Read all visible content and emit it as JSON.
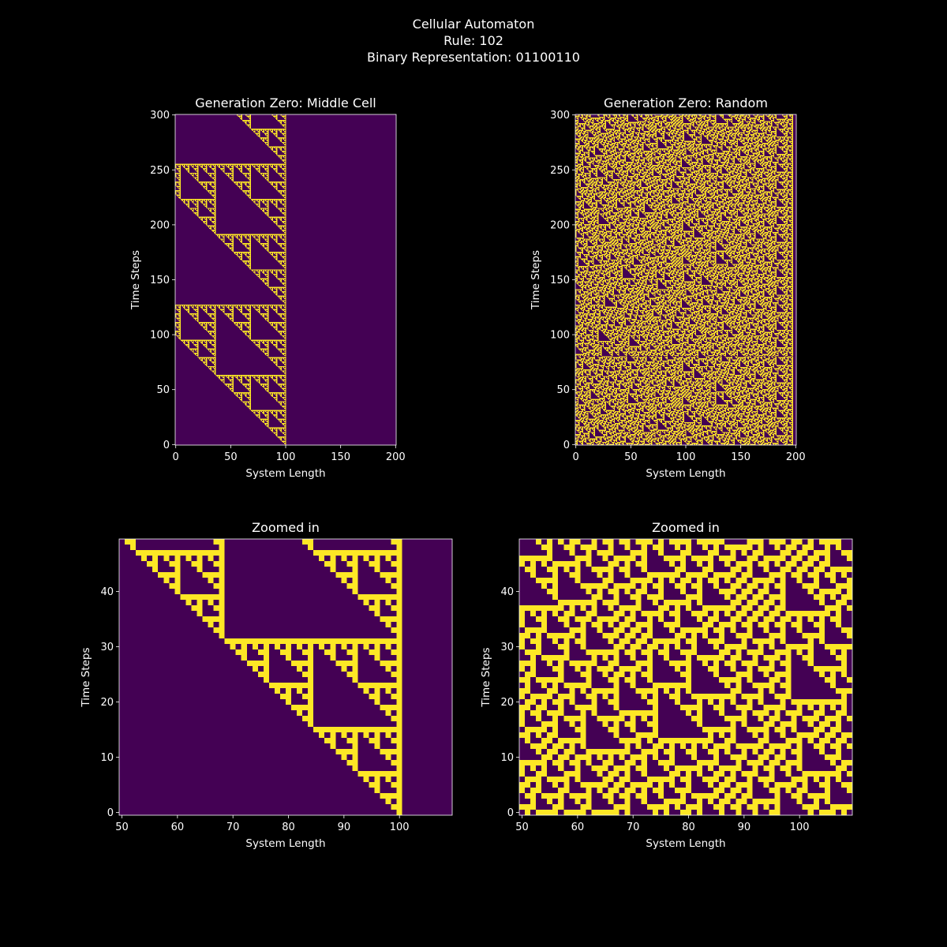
{
  "figure": {
    "title_line1": "Cellular Automaton",
    "title_line2": "Rule: 102",
    "title_line3": "Binary Representation: 01100110",
    "background": "#000000"
  },
  "colors": {
    "dead": "#440154",
    "alive": "#fde725",
    "axis": "#ffffff"
  },
  "chart_data": [
    {
      "type": "heatmap",
      "title": "Generation Zero: Middle Cell",
      "xlabel": "System Length",
      "ylabel": "Time Steps",
      "xlim": [
        0,
        201
      ],
      "ylim": [
        0,
        301
      ],
      "xticks": [
        0,
        50,
        100,
        150,
        200
      ],
      "yticks": [
        0,
        50,
        100,
        150,
        200,
        250,
        300
      ],
      "rule": 102,
      "system_length": 201,
      "time_steps": 301,
      "initial_condition": "middle-cell",
      "initial_cell": 100
    },
    {
      "type": "heatmap",
      "title": "Generation Zero: Random",
      "xlabel": "System Length",
      "ylabel": "Time Steps",
      "xlim": [
        0,
        201
      ],
      "ylim": [
        0,
        301
      ],
      "xticks": [
        0,
        50,
        100,
        150,
        200
      ],
      "yticks": [
        0,
        50,
        100,
        150,
        200,
        250,
        300
      ],
      "rule": 102,
      "system_length": 201,
      "time_steps": 301,
      "initial_condition": "random"
    },
    {
      "type": "heatmap",
      "title": "Zoomed in",
      "xlabel": "System Length",
      "ylabel": "Time Steps",
      "xlim": [
        50,
        110
      ],
      "ylim": [
        0,
        50
      ],
      "xticks": [
        50,
        60,
        70,
        80,
        90,
        100
      ],
      "yticks": [
        0,
        10,
        20,
        30,
        40
      ],
      "source": "Generation Zero: Middle Cell"
    },
    {
      "type": "heatmap",
      "title": "Zoomed in",
      "xlabel": "System Length",
      "ylabel": "Time Steps",
      "xlim": [
        50,
        110
      ],
      "ylim": [
        0,
        50
      ],
      "xticks": [
        50,
        60,
        70,
        80,
        90,
        100
      ],
      "yticks": [
        0,
        10,
        20,
        30,
        40
      ],
      "source": "Generation Zero: Random"
    }
  ]
}
